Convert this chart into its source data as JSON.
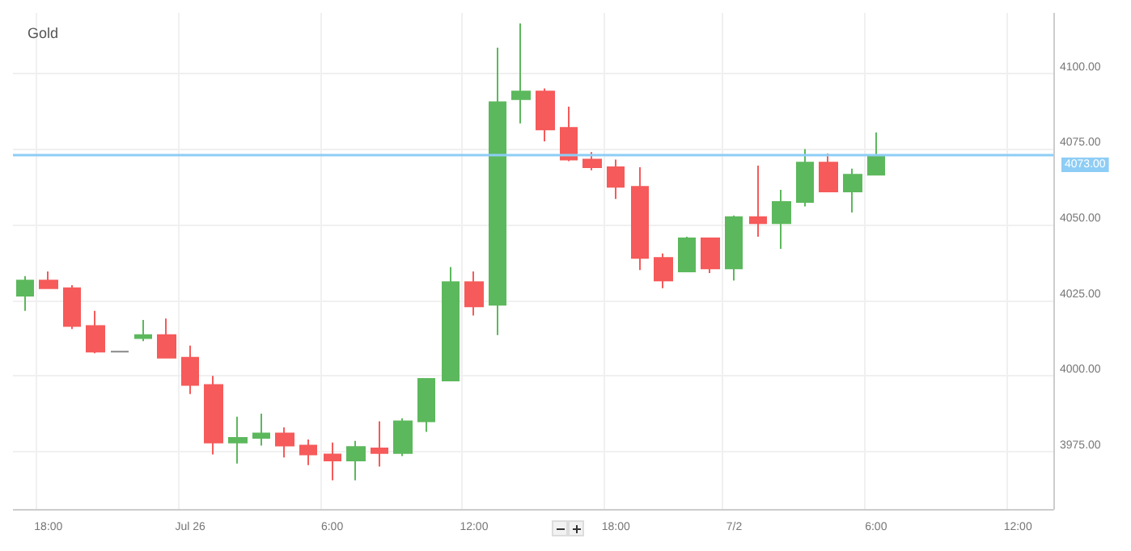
{
  "chart_data": {
    "type": "candlestick",
    "title": "Gold",
    "categories": [
      null,
      "18:00",
      null,
      null,
      null,
      null,
      null,
      "Jul 26",
      null,
      null,
      null,
      null,
      null,
      "6:00",
      null,
      null,
      null,
      null,
      null,
      "12:00",
      null,
      null,
      null,
      null,
      null,
      "18:00",
      null,
      null,
      null,
      null,
      "7/2",
      null,
      null,
      null,
      null,
      null,
      "6:00",
      null,
      null,
      null,
      null,
      null,
      "12:00",
      null
    ],
    "ohlc": [
      [
        4026.5,
        4033,
        4021.5,
        4031.5
      ],
      [
        4031.5,
        4034.5,
        4029,
        4029
      ],
      [
        4029,
        4030,
        4015.5,
        4016.5
      ],
      [
        4016.5,
        4021.5,
        4007.5,
        4008
      ],
      [
        4008,
        4008,
        4008,
        4008
      ],
      [
        4012.5,
        4018.5,
        4011.5,
        4013.5
      ],
      [
        4013.5,
        4019,
        4006,
        4006
      ],
      [
        4006,
        4010,
        3994,
        3997
      ],
      [
        3997,
        4000,
        3974,
        3978
      ],
      [
        3978,
        3986.5,
        3971,
        3979.5
      ],
      [
        3979.5,
        3987.5,
        3977,
        3981
      ],
      [
        3981,
        3983,
        3973,
        3977
      ],
      [
        3977,
        3979,
        3970.5,
        3974
      ],
      [
        3974,
        3978,
        3965.5,
        3972
      ],
      [
        3972,
        3978.5,
        3965.5,
        3976.5
      ],
      [
        3976,
        3985,
        3970,
        3974.5
      ],
      [
        3974.5,
        3986,
        3973.5,
        3985
      ],
      [
        3985,
        3999,
        3981.5,
        3999
      ],
      [
        3998.5,
        4036,
        3998.5,
        4031
      ],
      [
        4031,
        4034.5,
        4020,
        4023
      ],
      [
        4023.5,
        4108.5,
        4013.5,
        4090.5
      ],
      [
        4091.5,
        4116.5,
        4083.5,
        4094
      ],
      [
        4094,
        4095,
        4077.5,
        4081.5
      ],
      [
        4082,
        4089,
        4071,
        4071.5
      ],
      [
        4071.5,
        4074,
        4068,
        4069
      ],
      [
        4069,
        4071.5,
        4058.5,
        4062.5
      ],
      [
        4062.5,
        4069,
        4035,
        4039
      ],
      [
        4039,
        4040.5,
        4029,
        4031.5
      ],
      [
        4034.5,
        4046,
        4034.5,
        4045.5
      ],
      [
        4045.5,
        4045.5,
        4034,
        4035.5
      ],
      [
        4035.5,
        4053,
        4031.5,
        4052.5
      ],
      [
        4052.5,
        4069.5,
        4046,
        4050.5
      ],
      [
        4050.5,
        4061.5,
        4042,
        4057.5
      ],
      [
        4057.5,
        4075,
        4056,
        4070.5
      ],
      [
        4070.5,
        4073.5,
        4061,
        4061
      ],
      [
        4061,
        4068.5,
        4054,
        4066.5
      ],
      [
        4066.5,
        4080.5,
        4066.5,
        4073
      ],
      null,
      null,
      null,
      null,
      null,
      null,
      null
    ],
    "colors": [
      "#5cb85c",
      "#f65a5a",
      "#f65a5a",
      "#f65a5a",
      "#888888",
      "#5cb85c",
      "#f65a5a",
      "#f65a5a",
      "#f65a5a",
      "#5cb85c",
      "#5cb85c",
      "#f65a5a",
      "#f65a5a",
      "#f65a5a",
      "#5cb85c",
      "#f65a5a",
      "#5cb85c",
      "#5cb85c",
      "#5cb85c",
      "#f65a5a",
      "#5cb85c",
      "#5cb85c",
      "#f65a5a",
      "#f65a5a",
      "#f65a5a",
      "#f65a5a",
      "#f65a5a",
      "#f65a5a",
      "#5cb85c",
      "#f65a5a",
      "#5cb85c",
      "#f65a5a",
      "#5cb85c",
      "#5cb85c",
      "#f65a5a",
      "#5cb85c",
      "#5cb85c",
      null,
      null,
      null,
      null,
      null,
      null,
      null
    ],
    "ylim": [
      3956,
      4120
    ],
    "yticks": [
      {
        "value": 3975,
        "label": "3975.00"
      },
      {
        "value": 4000,
        "label": "4000.00"
      },
      {
        "value": 4025,
        "label": "4025.00"
      },
      {
        "value": 4050,
        "label": "4050.00"
      },
      {
        "value": 4075,
        "label": "4075.00"
      },
      {
        "value": 4100,
        "label": "4100.00"
      }
    ],
    "ref_lines": [
      {
        "axis": "y",
        "value": 4073,
        "label": "4073.00",
        "color": "#8ecdf5"
      }
    ],
    "grid": true
  }
}
